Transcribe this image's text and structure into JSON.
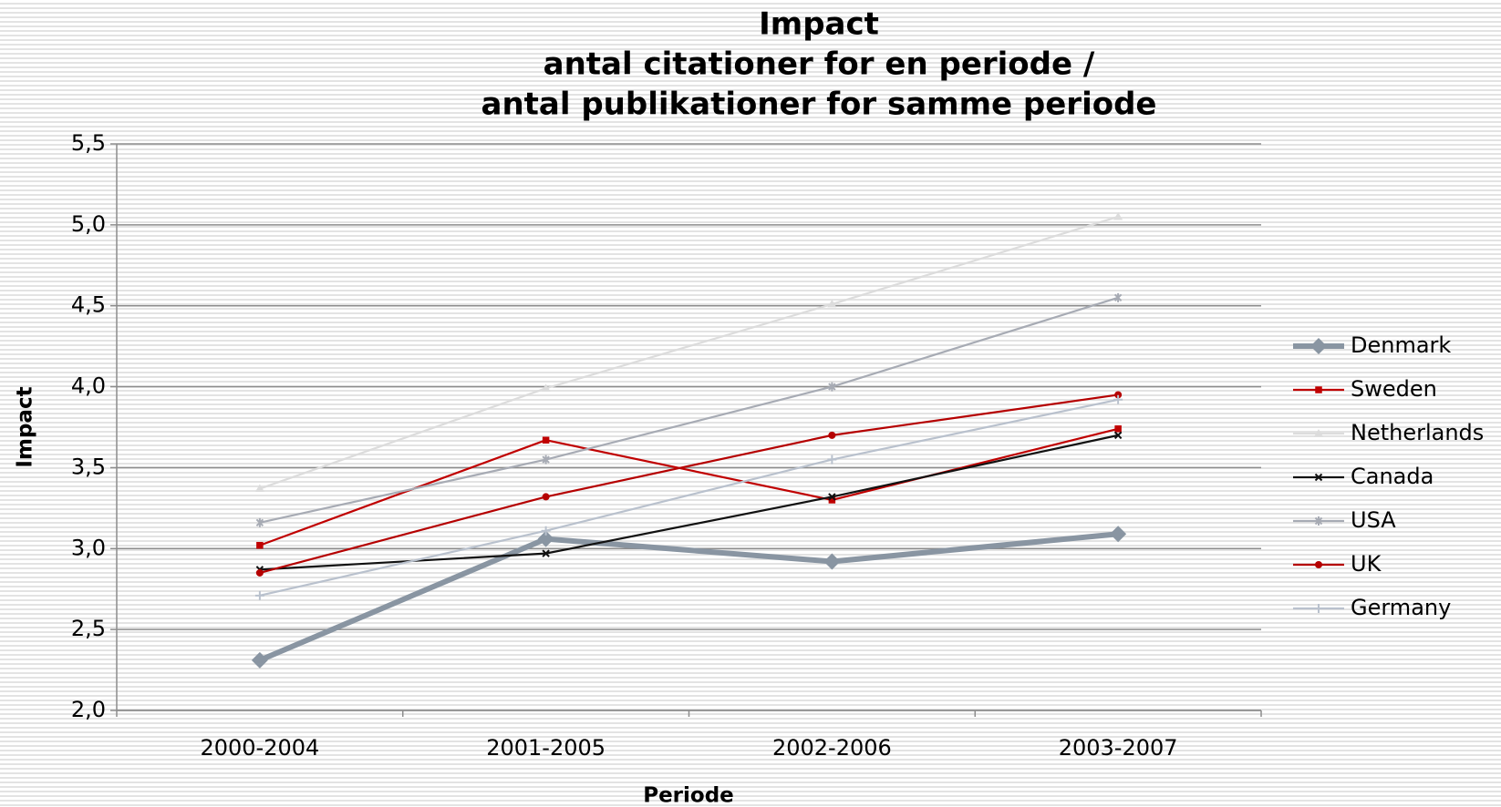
{
  "chart_data": {
    "type": "line",
    "title": [
      "Impact",
      "antal citationer for en periode /",
      "antal publikationer for samme periode"
    ],
    "xlabel": "Periode",
    "ylabel": "Impact",
    "categories": [
      "2000-2004",
      "2001-2005",
      "2002-2006",
      "2003-2007"
    ],
    "ylim": [
      2.0,
      5.5
    ],
    "yticks": [
      {
        "value": 2.0,
        "label": "2,0"
      },
      {
        "value": 2.5,
        "label": "2,5"
      },
      {
        "value": 3.0,
        "label": "3,0"
      },
      {
        "value": 3.5,
        "label": "3,5"
      },
      {
        "value": 4.0,
        "label": "4,0"
      },
      {
        "value": 4.5,
        "label": "4,5"
      },
      {
        "value": 5.0,
        "label": "5,0"
      },
      {
        "value": 5.5,
        "label": "5,5"
      }
    ],
    "grid": true,
    "legend": "right",
    "series": [
      {
        "name": "Denmark",
        "color": "#8995a2",
        "marker": "diamond",
        "values": [
          2.31,
          3.06,
          2.92,
          3.09
        ]
      },
      {
        "name": "Sweden",
        "color": "#c00000",
        "marker": "square",
        "values": [
          3.02,
          3.67,
          3.3,
          3.74
        ]
      },
      {
        "name": "Netherlands",
        "color": "#dcdcdc",
        "marker": "triangle",
        "values": [
          3.37,
          3.99,
          4.51,
          5.05
        ]
      },
      {
        "name": "Canada",
        "color": "#111111",
        "marker": "x",
        "values": [
          2.87,
          2.97,
          3.32,
          3.7
        ]
      },
      {
        "name": "USA",
        "color": "#a7abb4",
        "marker": "star",
        "values": [
          3.16,
          3.55,
          4.0,
          4.55
        ]
      },
      {
        "name": "UK",
        "color": "#b50000",
        "marker": "circle",
        "values": [
          2.85,
          3.32,
          3.7,
          3.95
        ]
      },
      {
        "name": "Germany",
        "color": "#b9c1cd",
        "marker": "plus",
        "values": [
          2.71,
          3.11,
          3.55,
          3.92
        ]
      }
    ]
  }
}
